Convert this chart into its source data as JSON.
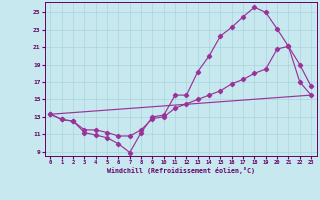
{
  "xlabel": "Windchill (Refroidissement éolien,°C)",
  "bg_color": "#c8e8ef",
  "line_color": "#993399",
  "grid_color": "#a8d4db",
  "xlim": [
    -0.5,
    23.5
  ],
  "ylim": [
    8.5,
    26.2
  ],
  "xticks": [
    0,
    1,
    2,
    3,
    4,
    5,
    6,
    7,
    8,
    9,
    10,
    11,
    12,
    13,
    14,
    15,
    16,
    17,
    18,
    19,
    20,
    21,
    22,
    23
  ],
  "yticks": [
    9,
    11,
    13,
    15,
    17,
    19,
    21,
    23,
    25
  ],
  "line1_x": [
    0,
    1,
    2,
    3,
    4,
    5,
    6,
    7,
    8,
    9,
    10,
    11,
    12,
    13,
    14,
    15,
    16,
    17,
    18,
    19,
    20,
    21,
    22,
    23
  ],
  "line1_y": [
    13.3,
    12.7,
    12.5,
    11.2,
    10.9,
    10.6,
    9.9,
    8.9,
    11.2,
    13.0,
    13.2,
    15.5,
    15.5,
    18.2,
    20.0,
    22.3,
    23.3,
    24.5,
    25.6,
    25.0,
    23.1,
    21.1,
    19.0,
    16.5
  ],
  "line2_x": [
    0,
    1,
    2,
    3,
    4,
    5,
    6,
    7,
    8,
    9,
    10,
    11,
    12,
    13,
    14,
    15,
    16,
    17,
    18,
    19,
    20,
    21,
    22,
    23
  ],
  "line2_y": [
    13.3,
    12.7,
    12.5,
    11.5,
    11.5,
    11.2,
    10.8,
    10.8,
    11.5,
    12.8,
    13.0,
    14.0,
    14.5,
    15.0,
    15.5,
    16.0,
    16.8,
    17.3,
    18.0,
    18.5,
    20.8,
    21.1,
    17.0,
    15.5
  ],
  "line3_x": [
    0,
    23
  ],
  "line3_y": [
    13.3,
    15.5
  ]
}
